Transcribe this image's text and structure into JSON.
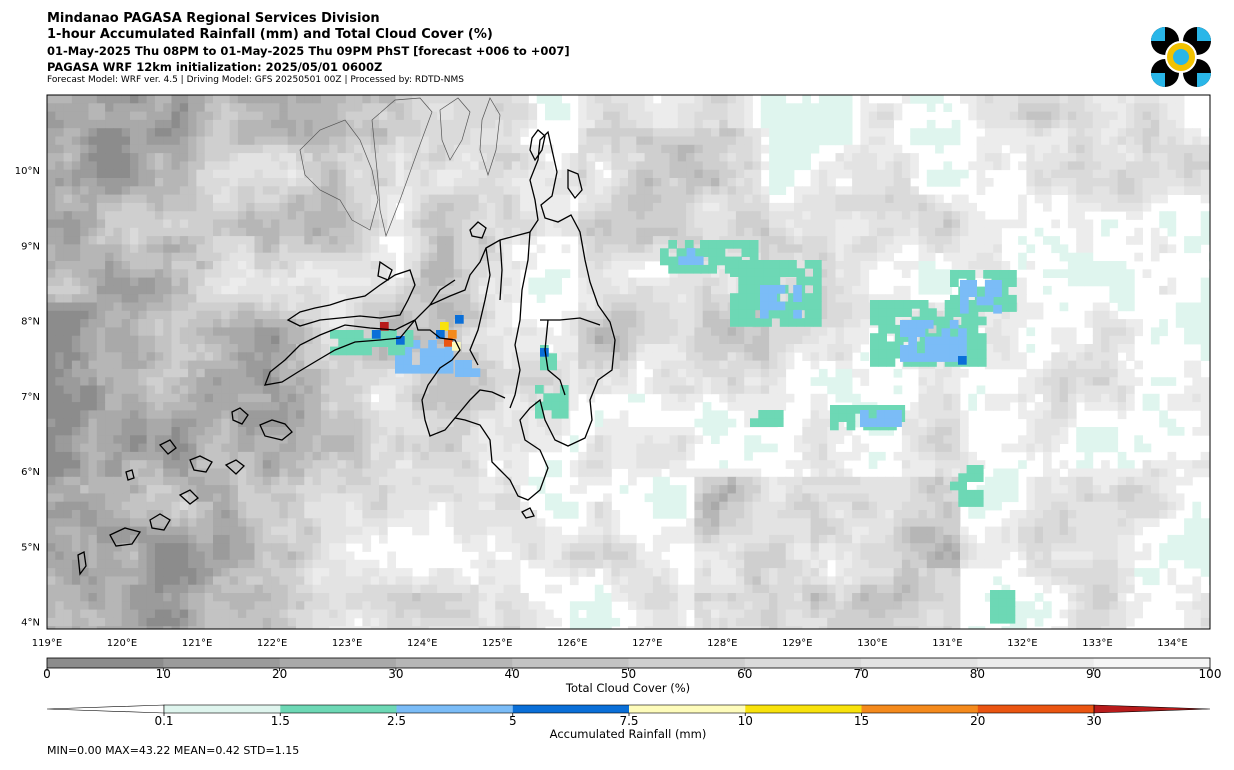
{
  "header": {
    "title": "Mindanao PAGASA Regional Services Division",
    "subtitle": "1-hour Accumulated Rainfall (mm) and Total Cloud Cover (%)",
    "valid_time": "01-May-2025 Thu 08PM to 01-May-2025 Thu 09PM PhST [forecast +006 to +007]",
    "init": "PAGASA WRF 12km initialization: 2025/05/01 0600Z",
    "credits": "Forecast Model: WRF ver. 4.5 | Driving Model: GFS 20250501 00Z | Processed by: RDTD-NMS"
  },
  "logo": {
    "name": "pagasa-logo",
    "colors": [
      "#000000",
      "#29b6e8",
      "#f2c200"
    ]
  },
  "map": {
    "lon_range": [
      119,
      134.5
    ],
    "lat_range": [
      3.9,
      11.0
    ],
    "lon_ticks": [
      "119°E",
      "120°E",
      "121°E",
      "122°E",
      "123°E",
      "124°E",
      "125°E",
      "126°E",
      "127°E",
      "128°E",
      "129°E",
      "130°E",
      "131°E",
      "132°E",
      "133°E",
      "134°E"
    ],
    "lat_ticks": [
      "4°N",
      "5°N",
      "6°N",
      "7°N",
      "8°N",
      "9°N",
      "10°N"
    ],
    "lon_values": [
      119,
      120,
      121,
      122,
      123,
      124,
      125,
      126,
      127,
      128,
      129,
      130,
      131,
      132,
      133,
      134
    ],
    "lat_values": [
      4,
      5,
      6,
      7,
      8,
      9,
      10
    ],
    "coastline_color": "#000000"
  },
  "cloud_colorbar": {
    "label": "Total Cloud Cover (%)",
    "ticks": [
      "0",
      "10",
      "20",
      "30",
      "40",
      "50",
      "60",
      "70",
      "80",
      "90",
      "100"
    ],
    "colors": [
      "#8c8c8c",
      "#9b9b9b",
      "#a9a9a9",
      "#b6b6b6",
      "#c3c3c3",
      "#cfcfcf",
      "#dadada",
      "#e3e3e3",
      "#ececec",
      "#f5f5f5"
    ]
  },
  "rain_colorbar": {
    "label": "Accumulated Rainfall (mm)",
    "ticks": [
      "0.1",
      "1.5",
      "2.5",
      "5",
      "7.5",
      "10",
      "15",
      "20",
      "30"
    ],
    "colors": [
      "#dff5ee",
      "#6dd8b5",
      "#7bbcf7",
      "#0a6fd8",
      "#fefcbb",
      "#f8e20c",
      "#f48a1c",
      "#ea5511",
      "#b81b1b"
    ]
  },
  "stats": "MIN=0.00   MAX=43.22   MEAN=0.42   STD=1.15"
}
